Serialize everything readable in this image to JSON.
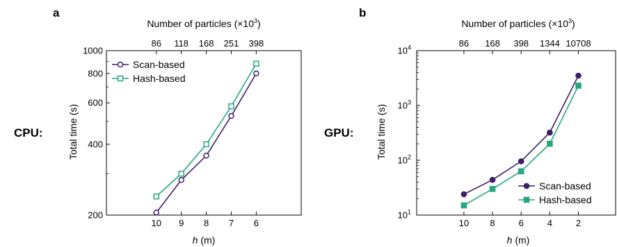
{
  "panels": [
    {
      "letter": "a",
      "row_label": "CPU:",
      "legend": {
        "location": "upper-left"
      }
    },
    {
      "letter": "b",
      "row_label": "GPU:",
      "legend": {
        "location": "lower-right"
      }
    }
  ],
  "colors": {
    "scan": "#3b1d6b",
    "hash": "#27a683"
  },
  "chart_data": [
    {
      "type": "line",
      "y_scale": "log",
      "x_direction": "reversed",
      "xlabel": "h (m)",
      "xlabel_var": "h",
      "xlabel_unit": "(m)",
      "ylabel": "Total time (s)",
      "top_xlabel": "Number of particles (×10³)",
      "top_xlabel_text": "Number of particles (",
      "top_xlabel_mult": "×10",
      "top_xlabel_exp": "3",
      "top_xlabel_close": ")",
      "x": [
        10,
        9,
        8,
        7,
        6
      ],
      "xlim": [
        12,
        4.2
      ],
      "ylim": [
        200,
        1000
      ],
      "x_ticks": [
        "10",
        "9",
        "8",
        "7",
        "6"
      ],
      "y_ticks": [
        {
          "value": 200,
          "label": "200"
        },
        {
          "value": 400,
          "label": "400"
        },
        {
          "value": 600,
          "label": "600"
        },
        {
          "value": 800,
          "label": "800"
        },
        {
          "value": 1000,
          "label": "1000"
        }
      ],
      "top_ticks": [
        {
          "x": 10,
          "label": "86"
        },
        {
          "x": 9,
          "label": "118"
        },
        {
          "x": 8,
          "label": "168"
        },
        {
          "x": 7,
          "label": "251"
        },
        {
          "x": 6,
          "label": "398"
        }
      ],
      "grid": false,
      "series": [
        {
          "name": "Scan-based",
          "marker": "open-circle",
          "color": "#3b1d6b",
          "values": [
            205,
            282,
            358,
            528,
            800
          ]
        },
        {
          "name": "Hash-based",
          "marker": "open-square",
          "color": "#27a683",
          "values": [
            240,
            300,
            400,
            580,
            880
          ]
        }
      ]
    },
    {
      "type": "line",
      "y_scale": "log",
      "x_direction": "reversed",
      "xlabel": "h (m)",
      "xlabel_var": "h",
      "xlabel_unit": "(m)",
      "ylabel": "Total time (s)",
      "top_xlabel": "Number of particles (×10³)",
      "top_xlabel_text": "Number of particles (",
      "top_xlabel_mult": "×10",
      "top_xlabel_exp": "3",
      "top_xlabel_close": ")",
      "x": [
        10,
        8,
        6,
        4,
        2
      ],
      "xlim": [
        13.3,
        -0.6
      ],
      "ylim": [
        10,
        10000
      ],
      "x_ticks": [
        "10",
        "8",
        "6",
        "4",
        "2"
      ],
      "y_ticks": [
        {
          "value": 10,
          "base": "10",
          "exp": "1"
        },
        {
          "value": 100,
          "base": "10",
          "exp": "2"
        },
        {
          "value": 1000,
          "base": "10",
          "exp": "3"
        },
        {
          "value": 10000,
          "base": "10",
          "exp": "4"
        }
      ],
      "top_ticks": [
        {
          "x": 10,
          "label": "86"
        },
        {
          "x": 8,
          "label": "168"
        },
        {
          "x": 6,
          "label": "398"
        },
        {
          "x": 4,
          "label": "1344"
        },
        {
          "x": 2,
          "label": "10708"
        }
      ],
      "grid": false,
      "series": [
        {
          "name": "Scan-based",
          "marker": "filled-circle",
          "color": "#3b1d6b",
          "values": [
            24,
            44,
            96,
            320,
            3500
          ]
        },
        {
          "name": "Hash-based",
          "marker": "filled-square",
          "color": "#27a683",
          "values": [
            15,
            30,
            63,
            200,
            2300
          ]
        }
      ]
    }
  ]
}
